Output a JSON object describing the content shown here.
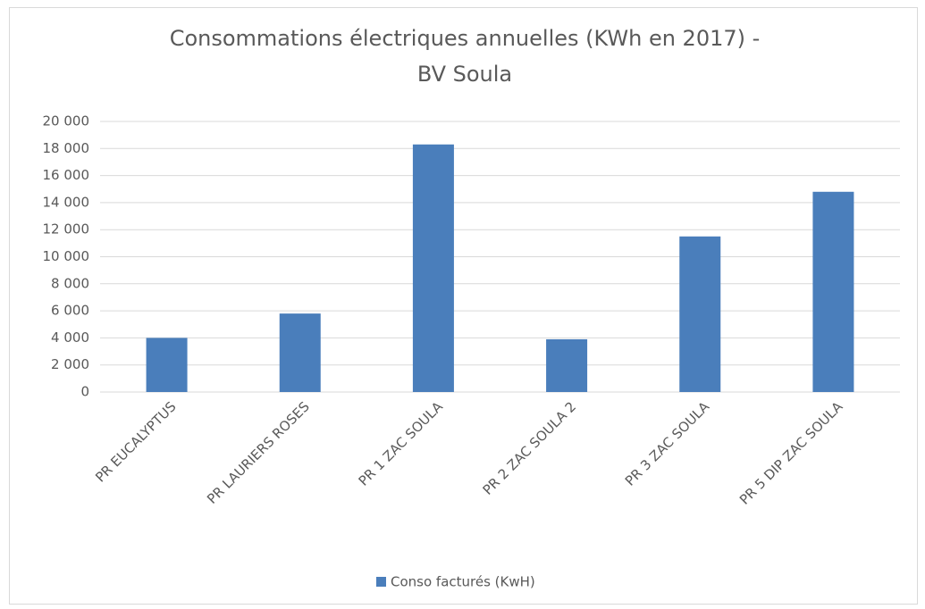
{
  "chart_data": {
    "type": "bar",
    "title": [
      "Consommations électriques annuelles (KWh en 2017) -",
      "BV Soula"
    ],
    "categories": [
      "PR EUCALYPTUS",
      "PR LAURIERS ROSES",
      "PR 1 ZAC SOULA",
      "PR 2 ZAC SOULA 2",
      "PR 3 ZAC SOULA",
      "PR 5 DIP ZAC SOULA"
    ],
    "series": [
      {
        "name": "Conso facturés (KwH)",
        "color": "#4a7ebb",
        "values": [
          4000,
          5800,
          18300,
          3900,
          11500,
          14800
        ]
      }
    ],
    "ylim": [
      0,
      20000
    ],
    "yticks": [
      0,
      {
        "value": 2000,
        "label": "2 000"
      },
      {
        "value": 4000,
        "label": "4 000"
      },
      {
        "value": 6000,
        "label": "6 000"
      },
      {
        "value": 8000,
        "label": "8 000"
      },
      {
        "value": 10000,
        "label": "10 000"
      },
      {
        "value": 12000,
        "label": "12 000"
      },
      {
        "value": 14000,
        "label": "14 000"
      },
      {
        "value": 16000,
        "label": "16 000"
      },
      {
        "value": 18000,
        "label": "18 000"
      },
      {
        "value": 20000,
        "label": "20 000"
      }
    ],
    "grid": true,
    "legend": "bottom"
  }
}
